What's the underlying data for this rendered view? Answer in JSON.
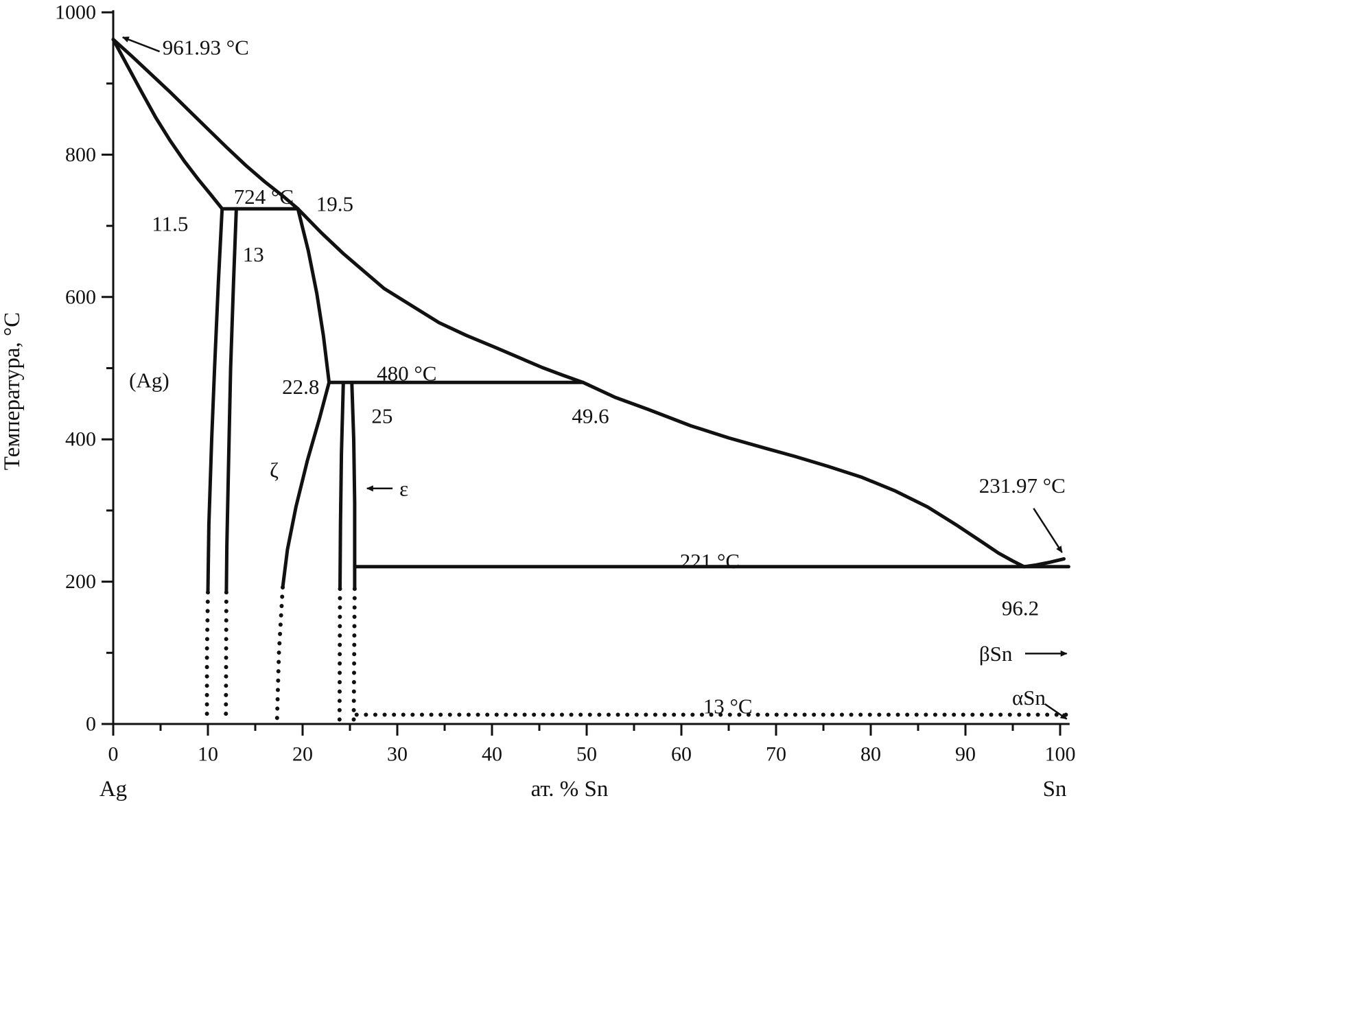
{
  "chart_data": {
    "type": "line",
    "title": "",
    "xlabel": "ат. % Sn",
    "ylabel": "Температура, °C",
    "x_left_label": "Ag",
    "x_right_label": "Sn",
    "xlim": [
      0,
      101
    ],
    "ylim": [
      0,
      1003
    ],
    "x_ticks_major": [
      0,
      10,
      20,
      30,
      40,
      50,
      60,
      70,
      80,
      90,
      100
    ],
    "x_minor_step": 5,
    "y_ticks_major": [
      0,
      200,
      400,
      600,
      800,
      1000
    ],
    "y_minor_step": 100,
    "grid": false,
    "legend": false,
    "line_color": "#111111",
    "phases": [
      "(Ag)",
      "ζ",
      "ε",
      "βSn",
      "αSn"
    ],
    "key_points": {
      "Ag_melting_C": 961.93,
      "Sn_melting_C": 231.97,
      "peritectic_1": {
        "T_C": 724,
        "compositions_at_pct_Sn": [
          11.5,
          13,
          19.5
        ]
      },
      "peritectic_2": {
        "T_C": 480,
        "compositions_at_pct_Sn": [
          22.8,
          25,
          49.6
        ]
      },
      "eutectic": {
        "T_C": 221,
        "composition_at_pct_Sn": 96.2
      },
      "Sn_alpha_beta_transition_C": 13
    },
    "series": [
      {
        "name": "liquidus-ag",
        "style": "solid",
        "points": [
          [
            0,
            961.93
          ],
          [
            2,
            938
          ],
          [
            4,
            913
          ],
          [
            6,
            888
          ],
          [
            8,
            862
          ],
          [
            10,
            836
          ],
          [
            12,
            810
          ],
          [
            14,
            785
          ],
          [
            16,
            762
          ],
          [
            18,
            741
          ],
          [
            19.5,
            724
          ]
        ]
      },
      {
        "name": "solidus-ag",
        "style": "solid",
        "points": [
          [
            0,
            961.93
          ],
          [
            1.5,
            925
          ],
          [
            3,
            888
          ],
          [
            4.5,
            852
          ],
          [
            6,
            820
          ],
          [
            7.5,
            791
          ],
          [
            9,
            765
          ],
          [
            10.3,
            744
          ],
          [
            11.5,
            724
          ]
        ]
      },
      {
        "name": "peritectic-line-724",
        "style": "solid",
        "points": [
          [
            11.5,
            724
          ],
          [
            19.5,
            724
          ]
        ]
      },
      {
        "name": "ag-solvus",
        "style": "solid",
        "points": [
          [
            11.5,
            724
          ],
          [
            11.1,
            620
          ],
          [
            10.7,
            500
          ],
          [
            10.4,
            400
          ],
          [
            10.1,
            280
          ],
          [
            10,
            185
          ]
        ]
      },
      {
        "name": "ag-solvus-extrapolated",
        "style": "dotted",
        "points": [
          [
            10,
            185
          ],
          [
            9.9,
            100
          ],
          [
            9.9,
            5
          ]
        ]
      },
      {
        "name": "zeta-left-boundary",
        "style": "solid",
        "points": [
          [
            13,
            724
          ],
          [
            12.7,
            620
          ],
          [
            12.4,
            500
          ],
          [
            12.2,
            380
          ],
          [
            12,
            250
          ],
          [
            11.95,
            185
          ]
        ]
      },
      {
        "name": "zeta-left-extrapolated",
        "style": "dotted",
        "points": [
          [
            11.95,
            185
          ],
          [
            11.9,
            5
          ]
        ]
      },
      {
        "name": "zeta-upper-right-boundary",
        "style": "solid",
        "points": [
          [
            19.5,
            724
          ],
          [
            20.6,
            665
          ],
          [
            21.5,
            605
          ],
          [
            22.2,
            545
          ],
          [
            22.8,
            480
          ]
        ]
      },
      {
        "name": "liquidus-middle",
        "style": "solid",
        "points": [
          [
            19.5,
            724
          ],
          [
            22,
            690
          ],
          [
            24.3,
            661
          ],
          [
            28.6,
            612
          ],
          [
            31.5,
            588
          ],
          [
            34.4,
            564
          ],
          [
            37.3,
            546
          ],
          [
            40.2,
            530
          ],
          [
            45.3,
            501
          ],
          [
            47.5,
            490
          ],
          [
            49.6,
            480
          ]
        ]
      },
      {
        "name": "peritectic-line-480",
        "style": "solid",
        "points": [
          [
            22.8,
            480
          ],
          [
            49.6,
            480
          ]
        ]
      },
      {
        "name": "zeta-lower-right-boundary",
        "style": "solid",
        "points": [
          [
            22.8,
            480
          ],
          [
            21.8,
            430
          ],
          [
            20.5,
            370
          ],
          [
            19.3,
            305
          ],
          [
            18.4,
            245
          ],
          [
            17.9,
            192
          ]
        ]
      },
      {
        "name": "zeta-lower-right-extrapolated",
        "style": "dotted",
        "points": [
          [
            17.9,
            192
          ],
          [
            17.5,
            100
          ],
          [
            17.3,
            5
          ]
        ]
      },
      {
        "name": "epsilon-left-boundary",
        "style": "solid",
        "points": [
          [
            24.3,
            478
          ],
          [
            24.1,
            380
          ],
          [
            24,
            280
          ],
          [
            23.95,
            190
          ]
        ]
      },
      {
        "name": "epsilon-left-extrapolated",
        "style": "dotted",
        "points": [
          [
            23.95,
            190
          ],
          [
            23.9,
            5
          ]
        ]
      },
      {
        "name": "epsilon-right-boundary",
        "style": "solid",
        "points": [
          [
            25.2,
            478
          ],
          [
            25.4,
            400
          ],
          [
            25.5,
            310
          ],
          [
            25.5,
            190
          ]
        ]
      },
      {
        "name": "epsilon-right-extrapolated",
        "style": "dotted",
        "points": [
          [
            25.5,
            190
          ],
          [
            25.4,
            5
          ]
        ]
      },
      {
        "name": "eutectic-line-221",
        "style": "solid",
        "points": [
          [
            25.5,
            221
          ],
          [
            100.9,
            221
          ]
        ]
      },
      {
        "name": "liquidus-sn",
        "style": "solid",
        "points": [
          [
            49.6,
            480
          ],
          [
            53,
            459
          ],
          [
            56.5,
            442
          ],
          [
            61,
            419
          ],
          [
            65,
            402
          ],
          [
            69,
            387
          ],
          [
            72,
            376
          ],
          [
            75.5,
            362
          ],
          [
            79,
            347
          ],
          [
            82.5,
            328
          ],
          [
            86,
            305
          ],
          [
            89,
            280
          ],
          [
            91.5,
            258
          ],
          [
            93.5,
            240
          ],
          [
            95,
            229
          ],
          [
            96.2,
            221
          ]
        ]
      },
      {
        "name": "liquidus-sn-rise",
        "style": "solid",
        "points": [
          [
            96.2,
            221
          ],
          [
            97.5,
            223.5
          ],
          [
            99,
            227.5
          ],
          [
            100.4,
            232
          ]
        ]
      },
      {
        "name": "alpha-beta-transition-13",
        "style": "dotted",
        "points": [
          [
            25.7,
            13
          ],
          [
            100.9,
            13
          ]
        ]
      }
    ],
    "annotations": [
      {
        "id": "ag-melting",
        "text": "961.93 °C",
        "x": 5.2,
        "y": 951,
        "anchor": "start"
      },
      {
        "id": "peritectic-724",
        "text": "724 °C",
        "x": 15.9,
        "y": 741
      },
      {
        "id": "comp-11-5",
        "text": "11.5",
        "x": 6.0,
        "y": 703
      },
      {
        "id": "comp-13",
        "text": "13",
        "x": 14.8,
        "y": 660
      },
      {
        "id": "comp-19-5",
        "text": "19.5",
        "x": 23.4,
        "y": 731
      },
      {
        "id": "peritectic-480",
        "text": "480 °C",
        "x": 31.0,
        "y": 493
      },
      {
        "id": "comp-22-8",
        "text": "22.8",
        "x": 19.8,
        "y": 474
      },
      {
        "id": "comp-25",
        "text": "25",
        "x": 28.4,
        "y": 433
      },
      {
        "id": "comp-49-6",
        "text": "49.6",
        "x": 50.4,
        "y": 433
      },
      {
        "id": "phase-ag",
        "text": "(Ag)",
        "x": 3.8,
        "y": 483
      },
      {
        "id": "phase-zeta",
        "text": "ζ",
        "x": 17.0,
        "y": 357
      },
      {
        "id": "phase-epsilon",
        "text": "ε",
        "x": 30.7,
        "y": 331
      },
      {
        "id": "sn-melting",
        "text": "231.97 °C",
        "x": 96.0,
        "y": 335
      },
      {
        "id": "eutectic-221",
        "text": "221 °C",
        "x": 63.0,
        "y": 229
      },
      {
        "id": "comp-96-2",
        "text": "96.2",
        "x": 95.8,
        "y": 163
      },
      {
        "id": "phase-beta-sn",
        "text": "βSn",
        "x": 93.2,
        "y": 99
      },
      {
        "id": "phase-alpha-sn",
        "text": "αSn",
        "x": 96.7,
        "y": 37
      },
      {
        "id": "transition-13",
        "text": "13 °C",
        "x": 64.9,
        "y": 25
      }
    ],
    "arrows": [
      {
        "id": "to-ag-melting",
        "x1": 4.9,
        "y1": 945,
        "x2": 1.0,
        "y2": 965
      },
      {
        "id": "to-epsilon",
        "x1": 29.5,
        "y1": 331,
        "x2": 26.8,
        "y2": 331
      },
      {
        "id": "to-sn-melting",
        "x1": 97.2,
        "y1": 303,
        "x2": 100.2,
        "y2": 241
      },
      {
        "id": "to-beta-sn",
        "x1": 96.3,
        "y1": 99,
        "x2": 100.7,
        "y2": 99
      },
      {
        "id": "to-alpha-sn",
        "x1": 98.4,
        "y1": 28,
        "x2": 100.7,
        "y2": 7
      }
    ]
  }
}
